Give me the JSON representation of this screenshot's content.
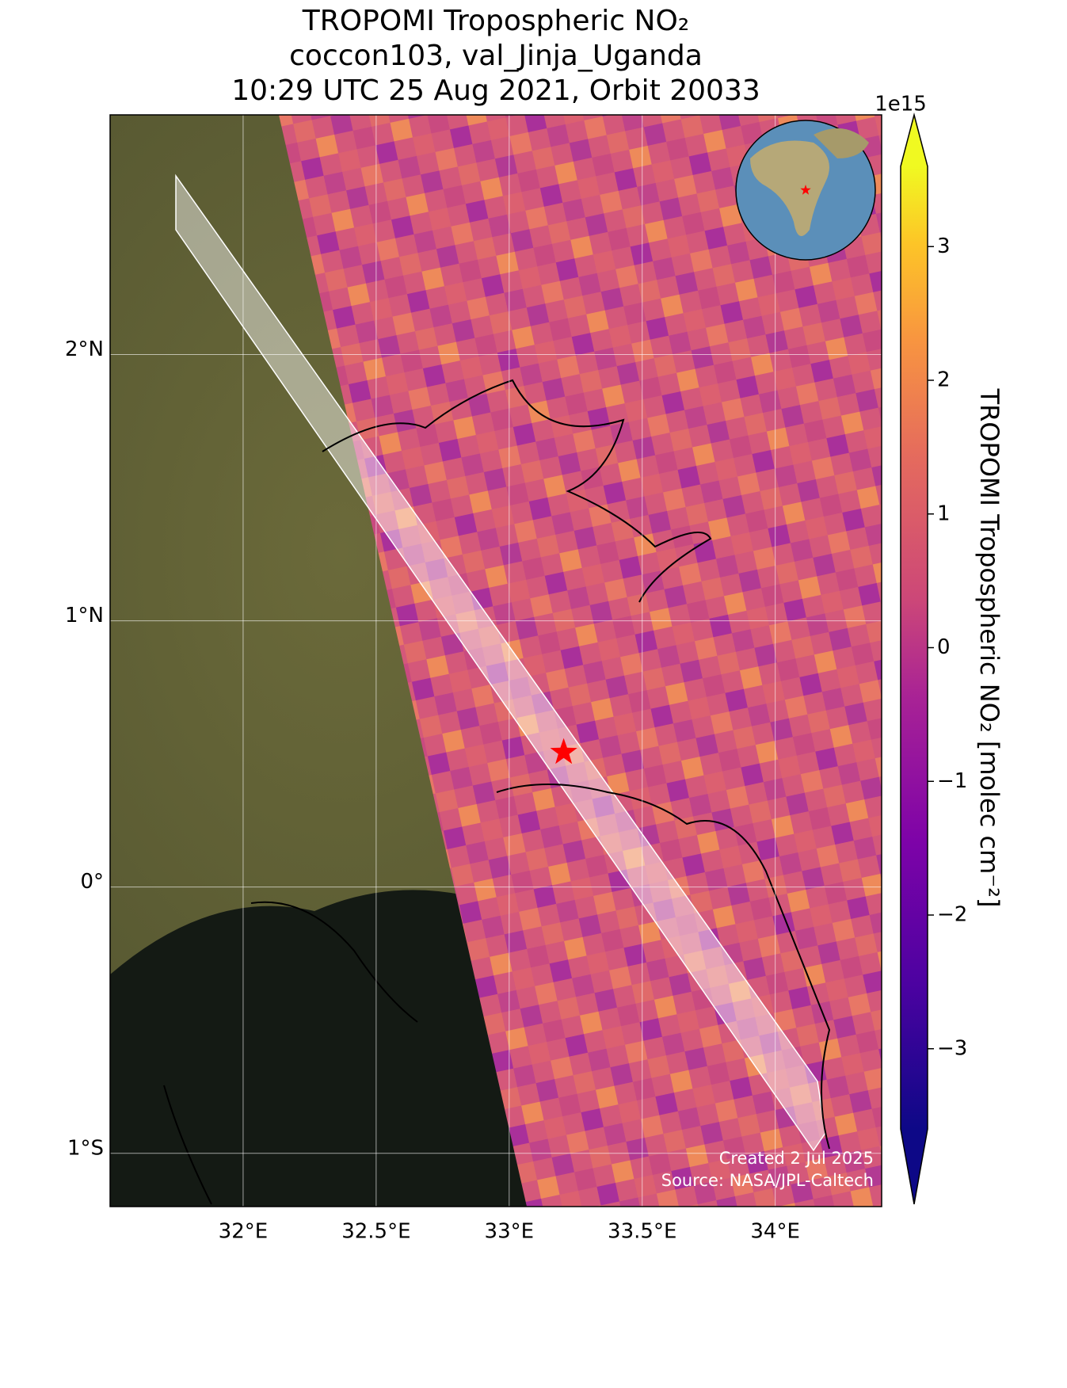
{
  "chart_data": {
    "type": "map",
    "title": [
      "TROPOMI Tropospheric NO₂",
      "coccon103, val_Jinja_Uganda",
      "10:29 UTC 25 Aug 2021, Orbit 20033"
    ],
    "xlim": [
      31.5,
      34.4
    ],
    "ylim": [
      -1.2,
      2.9
    ],
    "xticks": [
      {
        "value": 32,
        "label": "32°E"
      },
      {
        "value": 32.5,
        "label": "32.5°E"
      },
      {
        "value": 33,
        "label": "33°E"
      },
      {
        "value": 33.5,
        "label": "33.5°E"
      },
      {
        "value": 34,
        "label": "34°E"
      }
    ],
    "yticks": [
      {
        "value": 2,
        "label": "2°N"
      },
      {
        "value": 1,
        "label": "1°N"
      },
      {
        "value": 0,
        "label": "0°"
      },
      {
        "value": -1,
        "label": "1°S"
      }
    ],
    "grid": true,
    "station": {
      "lon": 33.205,
      "lat": 0.506,
      "color": "#ff0000"
    },
    "colorbar": {
      "label": "TROPOMI Tropospheric NO₂ [molec cm⁻²]",
      "multiplier": "1e15",
      "colormap": "plasma",
      "clim": [
        -3.6,
        3.6
      ],
      "ticks": [
        {
          "value": -3,
          "label": "−3"
        },
        {
          "value": -2,
          "label": "−2"
        },
        {
          "value": -1,
          "label": "−1"
        },
        0,
        1,
        2,
        3
      ]
    },
    "credits": [
      "Created 2 Jul 2025",
      "Source: NASA/JPL-Caltech"
    ]
  }
}
